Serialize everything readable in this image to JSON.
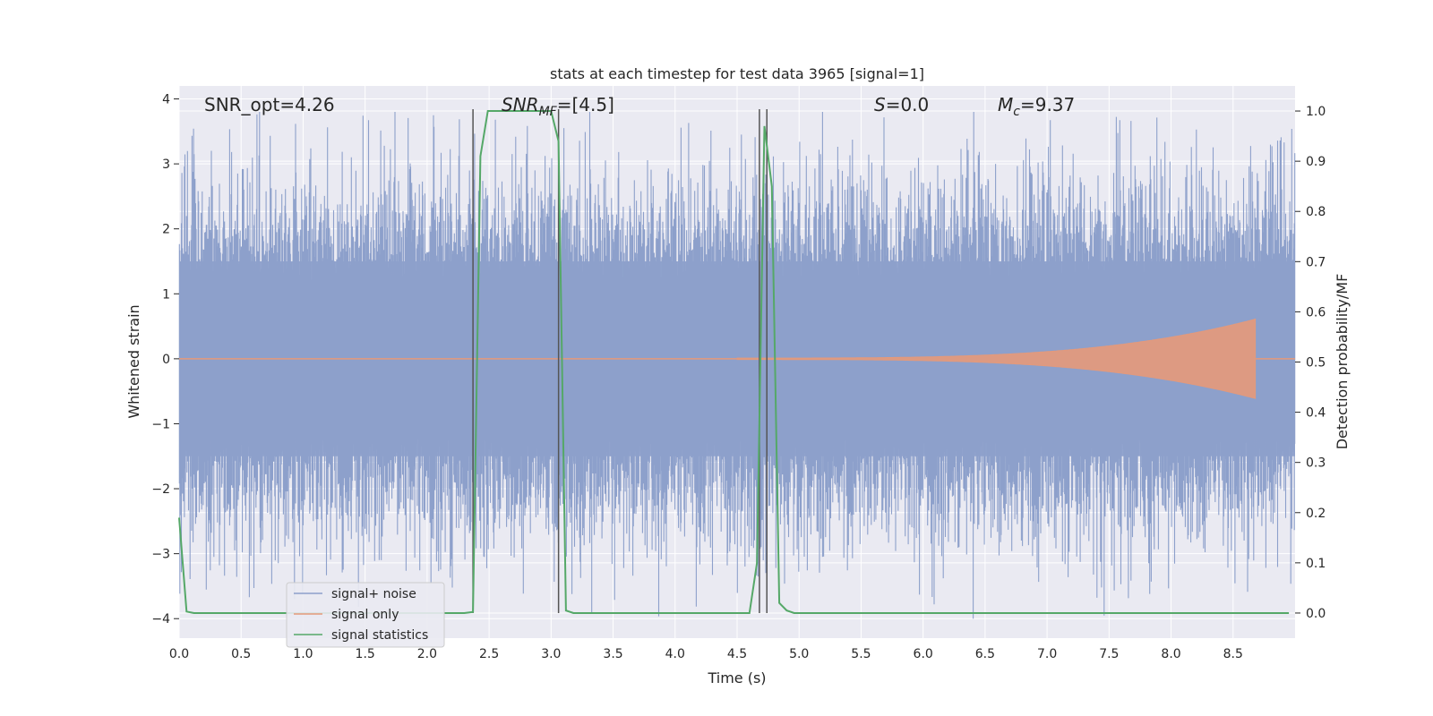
{
  "chart_data": {
    "type": "line",
    "title": "stats at each timestep for test data 3965 [signal=1]",
    "xlabel": "Time (s)",
    "ylabel": "Whitened strain",
    "ylabel_right": "Detection probability/MF",
    "xlim": [
      0.0,
      9.0
    ],
    "ylim": [
      -4.3,
      4.2
    ],
    "ylim_right": [
      -0.05,
      1.05
    ],
    "x_ticks": [
      "0.0",
      "0.5",
      "1.0",
      "1.5",
      "2.0",
      "2.5",
      "3.0",
      "3.5",
      "4.0",
      "4.5",
      "5.0",
      "5.5",
      "6.0",
      "6.5",
      "7.0",
      "7.5",
      "8.0",
      "8.5"
    ],
    "y_ticks": [
      "−4",
      "−3",
      "−2",
      "−1",
      "0",
      "1",
      "2",
      "3",
      "4"
    ],
    "y_right_ticks": [
      "0.0",
      "0.1",
      "0.2",
      "0.3",
      "0.4",
      "0.5",
      "0.6",
      "0.7",
      "0.8",
      "0.9",
      "1.0"
    ],
    "grid": true,
    "legend_position": "lower-left",
    "annotations": {
      "snr_opt": "SNR_opt=4.26",
      "snr_mf": "SNR",
      "snr_mf_sub": "MF",
      "snr_mf_value": "=[4.5]",
      "s_symbol": "S",
      "s_value": "=0.0",
      "mc_symbol": "M",
      "mc_sub": "c",
      "mc_value": "=9.37"
    },
    "series": [
      {
        "name": "signal+ noise",
        "color": "#8da0cb",
        "description_range": [
          -3.8,
          3.8
        ],
        "noise_amplitude_typical": 1.5,
        "noise_amplitude_peak": 3.8
      },
      {
        "name": "signal only",
        "color": "#e5997a",
        "chirp": {
          "t_start": 4.5,
          "t_merge": 8.68,
          "amp_peak": 0.6
        }
      },
      {
        "name": "signal statistics",
        "color": "#55a868",
        "axis": "right",
        "x": [
          0.0,
          0.06,
          0.12,
          2.3,
          2.37,
          2.43,
          2.49,
          3.0,
          3.06,
          3.12,
          3.18,
          4.6,
          4.66,
          4.72,
          4.78,
          4.84,
          4.9,
          4.96,
          8.95
        ],
        "y": [
          0.19,
          0.003,
          0.0,
          0.0,
          0.002,
          0.91,
          1.0,
          1.0,
          0.94,
          0.005,
          0.0,
          0.0,
          0.1,
          0.97,
          0.85,
          0.02,
          0.005,
          0.0,
          0.0
        ]
      }
    ],
    "vertical_lines": {
      "color": "#555555",
      "x": [
        2.37,
        3.06,
        4.68,
        4.74
      ]
    }
  }
}
